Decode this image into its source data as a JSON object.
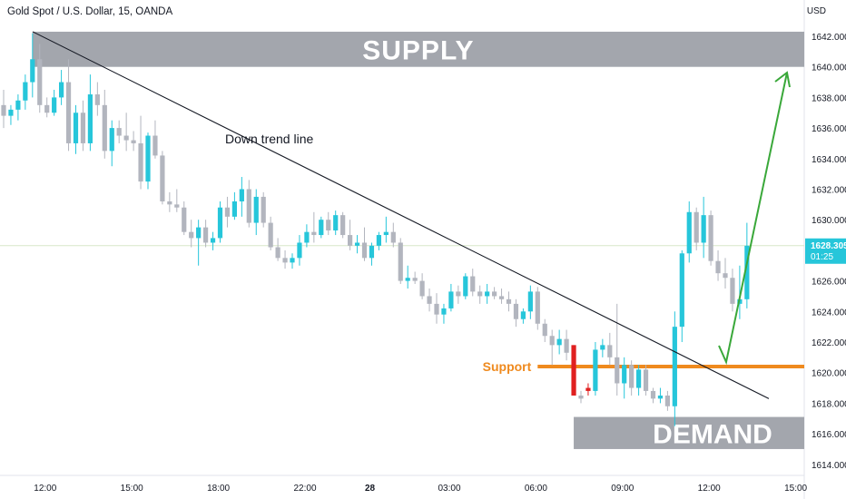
{
  "header": {
    "symbol_title": "Gold Spot / U.S. Dollar, 15, OANDA",
    "currency": "USD"
  },
  "price_tag": {
    "price": "1628.305",
    "countdown": "01:25"
  },
  "colors": {
    "up": "#26c6da",
    "down": "#b2b5be",
    "accent_down": "#e02020",
    "support": "#ef8a1e",
    "trend": "#131722",
    "arrow": "#3aa83a",
    "zone": "#a3a6ad",
    "grid_line": "#d7e7c8"
  },
  "annotations": {
    "supply": "SUPPLY",
    "demand": "DEMAND",
    "support": "Support",
    "trend": "Down trend line"
  },
  "chart_data": {
    "type": "candlestick",
    "ylim": [
      1613.5,
      1643.5
    ],
    "ytick_labels": [
      "1642.000",
      "1640.000",
      "1638.000",
      "1636.000",
      "1634.000",
      "1632.000",
      "1630.000",
      "1628.000",
      "1626.000",
      "1624.000",
      "1622.000",
      "1620.000",
      "1618.000",
      "1616.000",
      "1614.000"
    ],
    "ytick_values": [
      1642,
      1640,
      1638,
      1636,
      1634,
      1632,
      1630,
      1628,
      1626,
      1624,
      1622,
      1620,
      1618,
      1616,
      1614
    ],
    "xtick_labels": [
      "12:00",
      "15:00",
      "18:00",
      "22:00",
      "28",
      "03:00",
      "06:00",
      "09:00",
      "12:00",
      "15:00"
    ],
    "xtick_bars": [
      4,
      16,
      28,
      40,
      49,
      60,
      72,
      84,
      96,
      108
    ],
    "bar_count": 110,
    "grid": false,
    "current_price": 1628.305,
    "supply_zone": [
      1640.0,
      1642.3
    ],
    "demand_zone": [
      1615.0,
      1617.1
    ],
    "support_level": 1620.4,
    "candles": [
      [
        1637.5,
        1638.5,
        1636.0,
        1636.8
      ],
      [
        1636.8,
        1637.5,
        1636.2,
        1637.2
      ],
      [
        1637.2,
        1638.2,
        1636.5,
        1637.8
      ],
      [
        1637.8,
        1639.5,
        1637.2,
        1639.0
      ],
      [
        1639.0,
        1642.2,
        1638.0,
        1640.5
      ],
      [
        1640.5,
        1641.5,
        1637.0,
        1637.5
      ],
      [
        1637.5,
        1638.0,
        1636.7,
        1637.0
      ],
      [
        1637.0,
        1638.5,
        1636.8,
        1638.0
      ],
      [
        1638.0,
        1639.8,
        1637.5,
        1639.0
      ],
      [
        1639.0,
        1640.5,
        1634.5,
        1635.0
      ],
      [
        1635.0,
        1637.5,
        1634.3,
        1637.0
      ],
      [
        1637.0,
        1637.8,
        1634.5,
        1635.0
      ],
      [
        1635.0,
        1639.5,
        1634.5,
        1638.2
      ],
      [
        1638.2,
        1639.0,
        1636.8,
        1637.5
      ],
      [
        1637.5,
        1638.5,
        1634.0,
        1634.5
      ],
      [
        1634.5,
        1636.5,
        1633.5,
        1636.0
      ],
      [
        1636.0,
        1636.5,
        1635.0,
        1635.5
      ],
      [
        1635.5,
        1637.0,
        1634.5,
        1635.2
      ],
      [
        1635.2,
        1635.8,
        1634.5,
        1635.0
      ],
      [
        1635.0,
        1636.8,
        1632.0,
        1632.5
      ],
      [
        1632.5,
        1635.7,
        1632.0,
        1635.5
      ],
      [
        1635.5,
        1636.5,
        1634.0,
        1634.2
      ],
      [
        1634.2,
        1634.5,
        1631.0,
        1631.2
      ],
      [
        1631.2,
        1631.8,
        1630.5,
        1631.0
      ],
      [
        1631.0,
        1632.0,
        1630.5,
        1630.8
      ],
      [
        1630.8,
        1631.2,
        1629.0,
        1629.2
      ],
      [
        1629.2,
        1630.0,
        1628.2,
        1628.8
      ],
      [
        1628.8,
        1630.0,
        1627.0,
        1629.5
      ],
      [
        1629.5,
        1630.0,
        1628.2,
        1628.5
      ],
      [
        1628.5,
        1629.2,
        1628.0,
        1628.8
      ],
      [
        1628.8,
        1631.2,
        1628.5,
        1630.8
      ],
      [
        1630.8,
        1631.5,
        1629.5,
        1630.2
      ],
      [
        1630.2,
        1631.8,
        1630.0,
        1631.2
      ],
      [
        1631.2,
        1632.8,
        1630.2,
        1632.0
      ],
      [
        1632.0,
        1632.6,
        1629.5,
        1629.8
      ],
      [
        1629.8,
        1632.0,
        1629.0,
        1631.5
      ],
      [
        1631.5,
        1631.8,
        1629.5,
        1629.8
      ],
      [
        1629.8,
        1630.2,
        1628.0,
        1628.2
      ],
      [
        1628.2,
        1628.8,
        1627.3,
        1627.5
      ],
      [
        1627.5,
        1628.0,
        1626.8,
        1627.2
      ],
      [
        1627.2,
        1627.8,
        1626.8,
        1627.5
      ],
      [
        1627.5,
        1629.0,
        1627.0,
        1628.5
      ],
      [
        1628.5,
        1629.7,
        1628.2,
        1629.2
      ],
      [
        1629.2,
        1630.5,
        1628.5,
        1629.0
      ],
      [
        1629.0,
        1630.2,
        1628.8,
        1630.0
      ],
      [
        1630.0,
        1630.5,
        1629.0,
        1629.3
      ],
      [
        1629.3,
        1630.6,
        1629.0,
        1630.3
      ],
      [
        1630.3,
        1630.5,
        1628.8,
        1629.0
      ],
      [
        1629.0,
        1630.0,
        1628.0,
        1628.3
      ],
      [
        1628.3,
        1629.0,
        1627.8,
        1628.5
      ],
      [
        1628.5,
        1629.5,
        1627.3,
        1627.5
      ],
      [
        1627.5,
        1628.5,
        1627.0,
        1628.3
      ],
      [
        1628.3,
        1629.2,
        1628.0,
        1629.0
      ],
      [
        1629.0,
        1630.2,
        1628.5,
        1629.2
      ],
      [
        1629.2,
        1629.8,
        1628.2,
        1628.5
      ],
      [
        1628.5,
        1628.8,
        1625.8,
        1626.0
      ],
      [
        1626.0,
        1627.0,
        1625.5,
        1626.2
      ],
      [
        1626.2,
        1626.6,
        1625.8,
        1626.0
      ],
      [
        1626.0,
        1626.5,
        1624.8,
        1625.0
      ],
      [
        1625.0,
        1625.5,
        1624.0,
        1624.5
      ],
      [
        1624.5,
        1625.2,
        1623.2,
        1623.8
      ],
      [
        1623.8,
        1624.5,
        1623.2,
        1624.2
      ],
      [
        1624.2,
        1625.8,
        1624.0,
        1625.3
      ],
      [
        1625.3,
        1625.7,
        1624.5,
        1625.0
      ],
      [
        1625.0,
        1626.5,
        1624.8,
        1626.3
      ],
      [
        1626.3,
        1626.8,
        1625.0,
        1625.3
      ],
      [
        1625.3,
        1625.7,
        1624.5,
        1625.0
      ],
      [
        1625.0,
        1625.8,
        1624.5,
        1625.3
      ],
      [
        1625.3,
        1625.6,
        1624.8,
        1625.0
      ],
      [
        1625.0,
        1625.5,
        1624.5,
        1624.8
      ],
      [
        1624.8,
        1625.3,
        1624.0,
        1624.5
      ],
      [
        1624.5,
        1624.8,
        1623.0,
        1623.5
      ],
      [
        1623.5,
        1624.2,
        1623.2,
        1624.0
      ],
      [
        1624.0,
        1625.7,
        1623.5,
        1625.3
      ],
      [
        1625.3,
        1625.6,
        1622.8,
        1623.2
      ],
      [
        1623.2,
        1623.5,
        1622.0,
        1622.4
      ],
      [
        1622.4,
        1622.8,
        1620.5,
        1621.8
      ],
      [
        1621.8,
        1622.8,
        1621.2,
        1622.2
      ],
      [
        1622.2,
        1622.8,
        1620.8,
        1621.3
      ],
      [
        1621.8,
        1621.8,
        1618.5,
        1618.5
      ],
      [
        1618.5,
        1618.8,
        1618.0,
        1618.3
      ],
      [
        1618.8,
        1619.3,
        1618.5,
        1619.0
      ],
      [
        1618.8,
        1622.0,
        1618.5,
        1621.5
      ],
      [
        1621.5,
        1622.2,
        1621.0,
        1621.8
      ],
      [
        1621.8,
        1622.6,
        1620.5,
        1621.0
      ],
      [
        1621.0,
        1624.5,
        1618.5,
        1619.3
      ],
      [
        1619.3,
        1621.0,
        1618.3,
        1620.5
      ],
      [
        1620.5,
        1620.8,
        1618.5,
        1619.0
      ],
      [
        1619.0,
        1620.5,
        1618.5,
        1620.2
      ],
      [
        1620.2,
        1620.5,
        1618.5,
        1618.8
      ],
      [
        1618.8,
        1619.0,
        1618.0,
        1618.3
      ],
      [
        1618.3,
        1619.0,
        1618.0,
        1618.5
      ],
      [
        1618.5,
        1618.8,
        1617.5,
        1617.8
      ],
      [
        1617.8,
        1624.0,
        1616.5,
        1623.0
      ],
      [
        1623.0,
        1628.0,
        1622.0,
        1627.8
      ],
      [
        1627.8,
        1631.2,
        1627.2,
        1630.5
      ],
      [
        1630.5,
        1630.8,
        1628.0,
        1628.5
      ],
      [
        1628.5,
        1631.5,
        1627.5,
        1630.3
      ],
      [
        1630.3,
        1630.6,
        1627.0,
        1627.3
      ],
      [
        1627.3,
        1628.0,
        1626.0,
        1626.5
      ],
      [
        1626.5,
        1627.5,
        1625.5,
        1626.2
      ],
      [
        1626.2,
        1626.8,
        1624.0,
        1624.5
      ],
      [
        1624.5,
        1627.0,
        1623.5,
        1624.8
      ],
      [
        1624.8,
        1629.8,
        1624.2,
        1628.3
      ]
    ]
  }
}
